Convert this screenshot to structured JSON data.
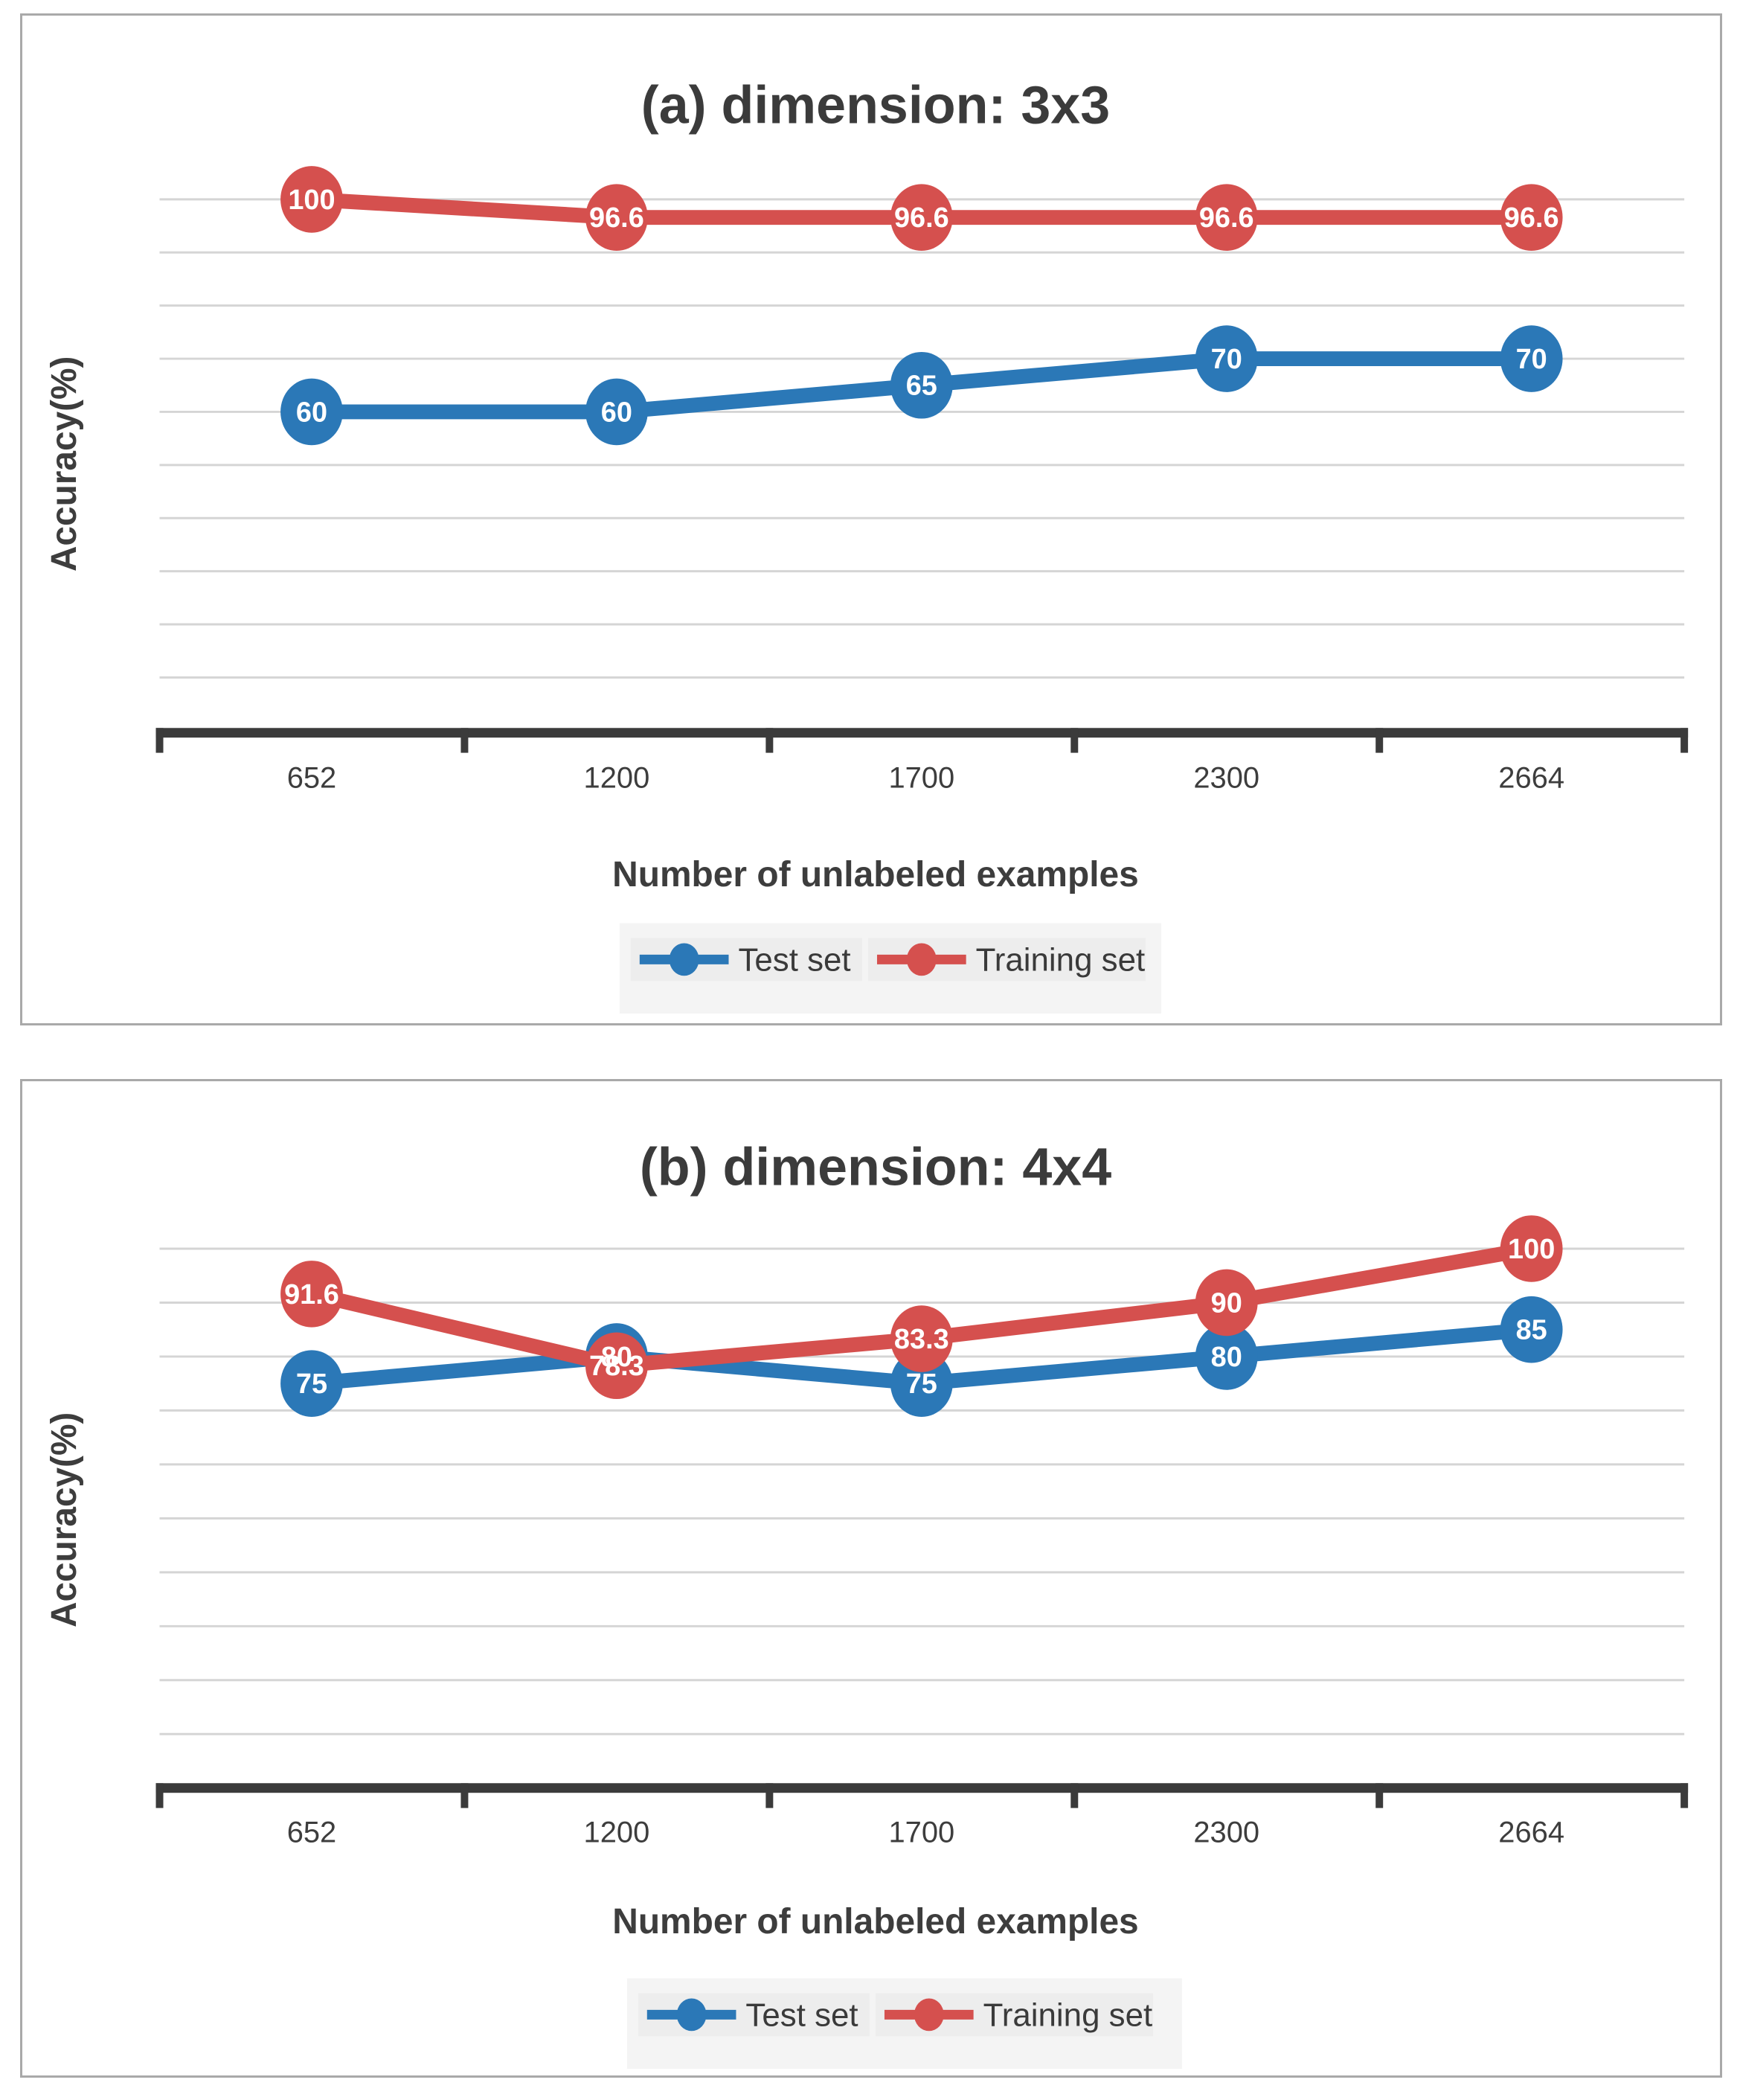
{
  "figure": {
    "description": "Two stacked line charts comparing training vs test accuracy against number of unlabeled examples",
    "accent_blue": "#2b78b7",
    "accent_red": "#d5504e",
    "legend_labels": [
      "Test set",
      "Training set"
    ]
  },
  "chart_data": [
    {
      "type": "line",
      "title": "(a) dimension: 3x3",
      "xlabel": "Number of unlabeled examples",
      "ylabel": "Accuracy(%)",
      "categories": [
        "652",
        "1200",
        "1700",
        "2300",
        "2664"
      ],
      "series": [
        {
          "name": "Test set",
          "color": "#2b78b7",
          "values": [
            60,
            60,
            65,
            70,
            70
          ],
          "labels": [
            "60",
            "60",
            "65",
            "70",
            "70"
          ]
        },
        {
          "name": "Training set",
          "color": "#d5504e",
          "values": [
            100,
            96.6,
            96.6,
            96.6,
            96.6
          ],
          "labels": [
            "100",
            "96.6",
            "96.6",
            "96.6",
            "96.6"
          ]
        }
      ],
      "ylim": [
        0,
        105
      ],
      "gridline_step": 10,
      "grid": "horizontal",
      "y_tick_labels_visible": false,
      "data_labels": "inside markers, white bold",
      "legend_position": "bottom"
    },
    {
      "type": "line",
      "title": "(b) dimension: 4x4",
      "xlabel": "Number of unlabeled examples",
      "ylabel": "Accuracy(%)",
      "categories": [
        "652",
        "1200",
        "1700",
        "2300",
        "2664"
      ],
      "series": [
        {
          "name": "Test set",
          "color": "#2b78b7",
          "values": [
            75,
            80,
            75,
            80,
            85
          ],
          "labels": [
            "75",
            "80",
            "75",
            "80",
            "85"
          ]
        },
        {
          "name": "Training set",
          "color": "#d5504e",
          "values": [
            91.6,
            78.3,
            83.3,
            90,
            100
          ],
          "labels": [
            "91.6",
            "78.3",
            "83.3",
            "90",
            "100"
          ]
        }
      ],
      "ylim": [
        0,
        105
      ],
      "gridline_step": 10,
      "grid": "horizontal",
      "y_tick_labels_visible": false,
      "data_labels": "inside markers, white bold",
      "legend_position": "bottom"
    }
  ]
}
